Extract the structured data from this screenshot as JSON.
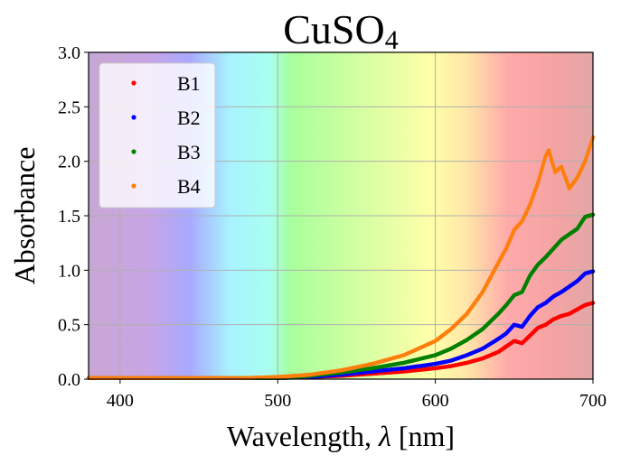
{
  "chart_data": {
    "type": "scatter",
    "title_main": "CuSO",
    "title_sub": "4",
    "xlabel_main": "Wavelength, ",
    "xlabel_symbol": "λ",
    "xlabel_unit": " [nm]",
    "ylabel": "Absorbance",
    "xlim": [
      380,
      700
    ],
    "ylim": [
      0,
      3.0
    ],
    "xticks": [
      400,
      500,
      600,
      700
    ],
    "yticks": [
      0.0,
      0.5,
      1.0,
      1.5,
      2.0,
      2.5,
      3.0
    ],
    "xtick_labels": [
      "400",
      "500",
      "600",
      "700"
    ],
    "ytick_labels": [
      "0.0",
      "0.5",
      "1.0",
      "1.5",
      "2.0",
      "2.5",
      "3.0"
    ],
    "grid": true,
    "legend_position": "top-left",
    "background": "visible-spectrum gradient",
    "series": [
      {
        "name": "B1",
        "color": "#ff0000",
        "x": [
          380,
          480,
          500,
          520,
          540,
          560,
          580,
          600,
          610,
          620,
          630,
          640,
          645,
          650,
          655,
          660,
          665,
          670,
          675,
          680,
          685,
          690,
          695,
          700
        ],
        "y": [
          0.01,
          0.01,
          0.01,
          0.02,
          0.03,
          0.05,
          0.07,
          0.1,
          0.12,
          0.15,
          0.19,
          0.25,
          0.3,
          0.35,
          0.33,
          0.4,
          0.47,
          0.5,
          0.55,
          0.58,
          0.6,
          0.64,
          0.68,
          0.7
        ]
      },
      {
        "name": "B2",
        "color": "#0000ff",
        "x": [
          380,
          480,
          500,
          520,
          540,
          560,
          580,
          600,
          610,
          620,
          630,
          640,
          645,
          650,
          655,
          660,
          665,
          670,
          675,
          680,
          685,
          690,
          695,
          700
        ],
        "y": [
          0.01,
          0.01,
          0.01,
          0.02,
          0.04,
          0.07,
          0.1,
          0.14,
          0.17,
          0.22,
          0.28,
          0.37,
          0.42,
          0.5,
          0.48,
          0.58,
          0.66,
          0.7,
          0.76,
          0.8,
          0.85,
          0.9,
          0.97,
          0.99
        ]
      },
      {
        "name": "B3",
        "color": "#008000",
        "x": [
          380,
          480,
          500,
          520,
          540,
          560,
          580,
          600,
          610,
          620,
          630,
          640,
          645,
          650,
          655,
          660,
          665,
          670,
          675,
          680,
          685,
          690,
          695,
          700
        ],
        "y": [
          0.01,
          0.01,
          0.01,
          0.03,
          0.06,
          0.1,
          0.15,
          0.22,
          0.28,
          0.36,
          0.46,
          0.6,
          0.68,
          0.77,
          0.8,
          0.95,
          1.05,
          1.12,
          1.2,
          1.28,
          1.33,
          1.38,
          1.49,
          1.51
        ]
      },
      {
        "name": "B4",
        "color": "#ff7f0e",
        "x": [
          380,
          480,
          500,
          520,
          540,
          560,
          580,
          600,
          610,
          620,
          630,
          640,
          645,
          650,
          655,
          660,
          665,
          670,
          672,
          676,
          680,
          685,
          690,
          695,
          700
        ],
        "y": [
          0.01,
          0.01,
          0.02,
          0.04,
          0.08,
          0.14,
          0.22,
          0.35,
          0.46,
          0.6,
          0.8,
          1.07,
          1.2,
          1.37,
          1.45,
          1.6,
          1.8,
          2.05,
          2.1,
          1.9,
          1.95,
          1.75,
          1.85,
          2.0,
          2.22
        ]
      }
    ]
  }
}
